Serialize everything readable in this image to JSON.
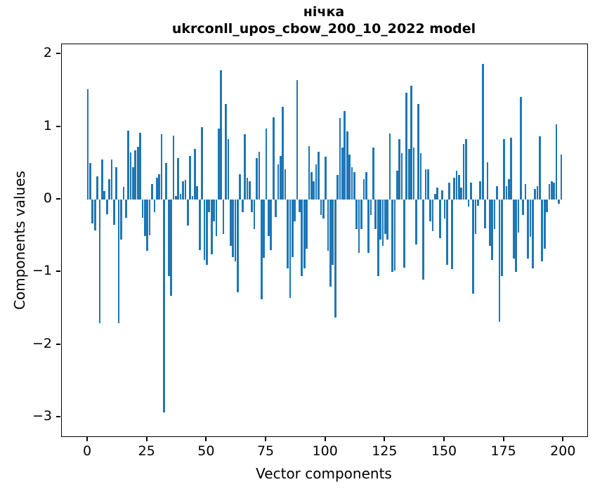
{
  "title": {
    "line1": "нічка",
    "line2": "ukrconll_upos_cbow_200_10_2022 model"
  },
  "chart_data": {
    "type": "bar",
    "title": "нічка",
    "subtitle": "ukrconll_upos_cbow_200_10_2022 model",
    "xlabel": "Vector components",
    "ylabel": "Components values",
    "bar_color": "#1f77b4",
    "background": "#ffffff",
    "grid": false,
    "legend": "none",
    "xlim": [
      -10.95,
      209.95
    ],
    "ylim": [
      -3.26,
      2.14
    ],
    "xticks": [
      0,
      25,
      50,
      75,
      100,
      125,
      150,
      175,
      200
    ],
    "ytick_values": [
      2,
      1,
      0,
      -1,
      -2,
      -3
    ],
    "ytick_labels": [
      "2",
      "1",
      "0",
      "−1",
      "−2",
      "−3"
    ],
    "x_start": 0,
    "values": [
      1.52,
      0.5,
      -0.33,
      -0.42,
      0.32,
      -1.7,
      0.55,
      0.12,
      -0.2,
      0.28,
      0.55,
      -0.35,
      0.45,
      -1.7,
      -0.55,
      0.18,
      -0.25,
      0.95,
      0.65,
      0.45,
      0.68,
      0.73,
      0.92,
      -0.25,
      -0.5,
      -0.71,
      -0.49,
      0.21,
      -0.17,
      0.3,
      0.35,
      0.9,
      -2.93,
      0.5,
      -1.05,
      -1.32,
      0.88,
      0.05,
      0.57,
      0.08,
      0.25,
      0.27,
      -0.36,
      0.6,
      0.05,
      0.7,
      0.19,
      -0.7,
      1.0,
      -0.83,
      -0.9,
      -0.17,
      -0.75,
      -0.3,
      -0.5,
      0.98,
      1.78,
      -0.47,
      1.32,
      0.83,
      -0.64,
      -0.79,
      -0.85,
      -1.28,
      0.35,
      -0.17,
      0.9,
      0.3,
      0.25,
      -0.17,
      -0.41,
      0.57,
      0.66,
      -1.37,
      -0.8,
      0.98,
      -0.5,
      -0.7,
      1.13,
      -0.24,
      0.49,
      0.6,
      1.28,
      0.42,
      -0.95,
      -1.35,
      -0.79,
      -0.3,
      1.65,
      -0.17,
      -1.05,
      -0.95,
      -0.68,
      0.74,
      0.38,
      0.25,
      0.49,
      0.66,
      -0.21,
      -0.26,
      0.59,
      -0.71,
      -1.2,
      -0.9,
      -1.62,
      0.34,
      1.12,
      0.72,
      1.22,
      0.94,
      0.62,
      0.45,
      0.38,
      -0.41,
      -0.73,
      -0.41,
      0.28,
      0.38,
      -0.73,
      -0.21,
      0.72,
      -0.41,
      -1.05,
      -0.55,
      -0.64,
      -0.47,
      -0.55,
      0.91,
      -1.0,
      -0.98,
      0.4,
      0.83,
      0.64,
      -0.94,
      1.47,
      0.7,
      1.57,
      0.72,
      -0.62,
      1.32,
      0.64,
      -1.1,
      0.42,
      0.42,
      -0.3,
      -0.43,
      0.08,
      0.17,
      -0.53,
      0.13,
      -0.26,
      -0.9,
      0.23,
      -0.96,
      0.3,
      0.4,
      0.34,
      0.17,
      0.77,
      0.83,
      -0.1,
      0.23,
      -1.3,
      -0.47,
      -0.09,
      0.25,
      1.87,
      -0.4,
      0.51,
      -0.64,
      -0.83,
      -0.41,
      0.19,
      -1.68,
      -1.05,
      0.83,
      0.19,
      0.28,
      0.85,
      -0.81,
      -1.0,
      -0.45,
      1.41,
      -0.21,
      0.21,
      -0.81,
      -0.51,
      -0.95,
      0.15,
      0.19,
      0.87,
      -0.85,
      -0.68,
      -0.17,
      0.21,
      0.25,
      0.23,
      1.04,
      -0.06,
      0.62
    ]
  }
}
